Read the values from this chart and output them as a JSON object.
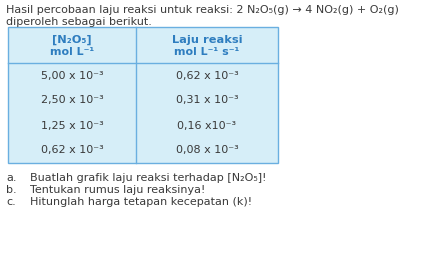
{
  "title_line1": "Hasil percobaan laju reaksi untuk reaksi: 2 N₂O₅(g) → 4 NO₂(g) + O₂(g)",
  "title_line2": "diperoleh sebagai berikut.",
  "col1_header_line1": "[N₂O₅]",
  "col1_header_line2": "mol L⁻¹",
  "col2_header_line1": "Laju reaksi",
  "col2_header_line2": "mol L⁻¹ s⁻¹",
  "col1_data": [
    "5,00 x 10⁻³",
    "2,50 x 10⁻³",
    "1,25 x 10⁻³",
    "0,62 x 10⁻³"
  ],
  "col2_data": [
    "0,62 x 10⁻³",
    "0,31 x 10⁻³",
    "0,16 x10⁻³",
    "0,08 x 10⁻³"
  ],
  "footer_items": [
    [
      "a.",
      "Buatlah grafik laju reaksi terhadap [N₂O₅]!"
    ],
    [
      "b.",
      "Tentukan rumus laju reaksinya!"
    ],
    [
      "c.",
      "Hitunglah harga tetapan kecepatan (k)!"
    ]
  ],
  "table_bg": "#d6eef8",
  "header_text_color": "#2e7dbf",
  "body_text_color": "#3a3a3a",
  "title_text_color": "#3a3a3a",
  "footer_text_color": "#3a3a3a",
  "border_color": "#6aafe0",
  "figsize": [
    4.43,
    2.59
  ],
  "dpi": 100
}
